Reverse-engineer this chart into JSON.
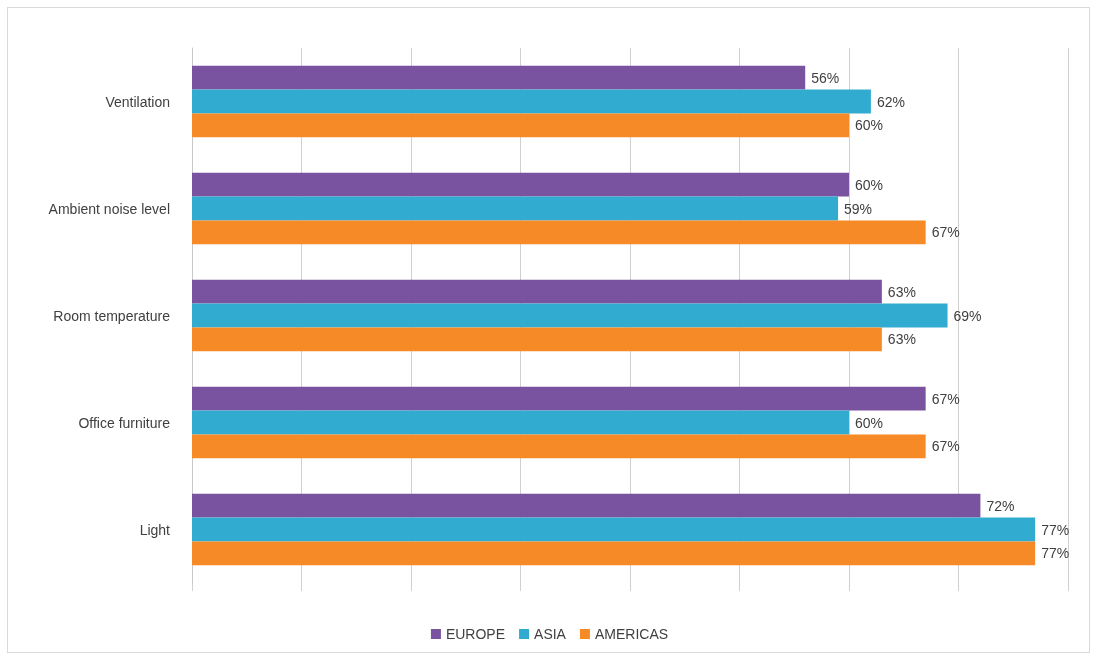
{
  "chart_data": {
    "type": "bar",
    "orientation": "horizontal",
    "categories": [
      "Ventilation",
      "Ambient noise level",
      "Room temperature",
      "Office furniture",
      "Light"
    ],
    "series": [
      {
        "name": "EUROPE",
        "color": "#7953a0",
        "values": [
          56,
          60,
          63,
          67,
          72
        ],
        "value_labels": [
          "56%",
          "60%",
          "63%",
          "67%",
          "72%"
        ]
      },
      {
        "name": "ASIA",
        "color": "#32abd0",
        "values": [
          62,
          59,
          69,
          60,
          77
        ],
        "value_labels": [
          "62%",
          "59%",
          "69%",
          "60%",
          "77%"
        ]
      },
      {
        "name": "AMERICAS",
        "color": "#f58a27",
        "values": [
          60,
          67,
          63,
          67,
          77
        ],
        "value_labels": [
          "60%",
          "67%",
          "63%",
          "67%",
          "77%"
        ]
      }
    ],
    "xlim": [
      0,
      80
    ],
    "xticks": [
      {
        "value": 0,
        "label": null
      },
      {
        "value": 10,
        "label": null
      },
      {
        "value": 20,
        "label": null
      },
      {
        "value": 30,
        "label": null
      },
      {
        "value": 40,
        "label": null
      },
      {
        "value": 50,
        "label": null
      },
      {
        "value": 60,
        "label": null
      },
      {
        "value": 70,
        "label": null
      },
      {
        "value": 80,
        "label": null
      }
    ],
    "tick_labels": "y",
    "grid": "x",
    "legend": "bottom"
  }
}
